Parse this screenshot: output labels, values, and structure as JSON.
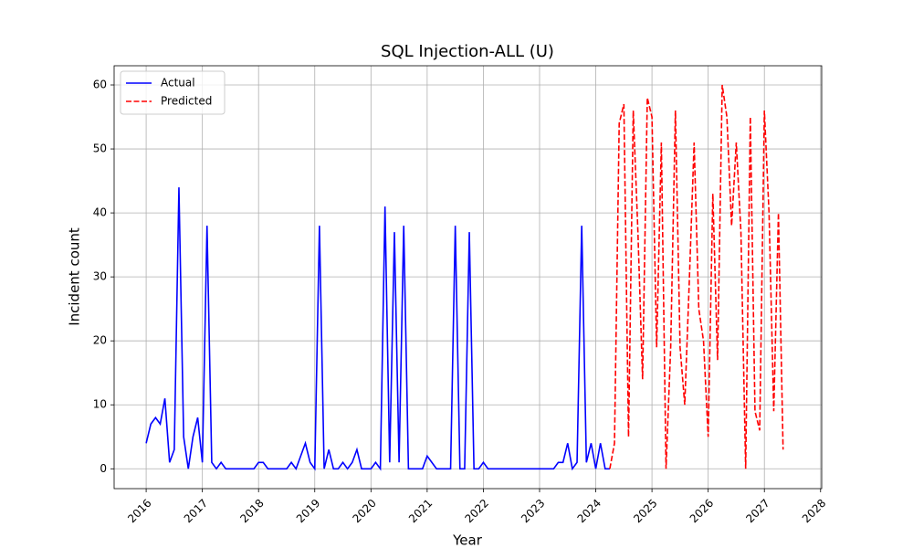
{
  "chart_data": {
    "type": "line",
    "title": "SQL Injection-ALL (U)",
    "x_label": "Year",
    "y_label": "Incident count",
    "series": [
      {
        "name": "Actual",
        "color": "#0000ff",
        "linestyle": "solid",
        "x": [
          2016.0,
          2016.083,
          2016.167,
          2016.25,
          2016.333,
          2016.417,
          2016.5,
          2016.583,
          2016.667,
          2016.75,
          2016.833,
          2016.917,
          2017.0,
          2017.083,
          2017.167,
          2017.25,
          2017.333,
          2017.417,
          2017.5,
          2017.583,
          2017.667,
          2017.75,
          2017.833,
          2017.917,
          2018.0,
          2018.083,
          2018.167,
          2018.25,
          2018.333,
          2018.417,
          2018.5,
          2018.583,
          2018.667,
          2018.75,
          2018.833,
          2018.917,
          2019.0,
          2019.083,
          2019.167,
          2019.25,
          2019.333,
          2019.417,
          2019.5,
          2019.583,
          2019.667,
          2019.75,
          2019.833,
          2019.917,
          2020.0,
          2020.083,
          2020.167,
          2020.25,
          2020.333,
          2020.417,
          2020.5,
          2020.583,
          2020.667,
          2020.75,
          2020.833,
          2020.917,
          2021.0,
          2021.083,
          2021.167,
          2021.25,
          2021.333,
          2021.417,
          2021.5,
          2021.583,
          2021.667,
          2021.75,
          2021.833,
          2021.917,
          2022.0,
          2022.083,
          2022.167,
          2022.25,
          2022.333,
          2022.417,
          2022.5,
          2022.583,
          2022.667,
          2022.75,
          2022.833,
          2022.917,
          2023.0,
          2023.083,
          2023.167,
          2023.25,
          2023.333,
          2023.417,
          2023.5,
          2023.583,
          2023.667,
          2023.75,
          2023.833,
          2023.917,
          2024.0,
          2024.083,
          2024.167,
          2024.25
        ],
        "values": [
          4,
          7,
          8,
          7,
          11,
          1,
          3,
          44,
          5,
          0,
          5,
          8,
          1,
          38,
          1,
          0,
          1,
          0,
          0,
          0,
          0,
          0,
          0,
          0,
          1,
          1,
          0,
          0,
          0,
          0,
          0,
          1,
          0,
          2,
          4,
          1,
          0,
          38,
          0,
          3,
          0,
          0,
          1,
          0,
          1,
          3,
          0,
          0,
          0,
          1,
          0,
          41,
          1,
          37,
          1,
          38,
          0,
          0,
          0,
          0,
          2,
          1,
          0,
          0,
          0,
          0,
          38,
          0,
          0,
          37,
          0,
          0,
          1,
          0,
          0,
          0,
          0,
          0,
          0,
          0,
          0,
          0,
          0,
          0,
          0,
          0,
          0,
          0,
          1,
          1,
          4,
          0,
          1,
          38,
          1,
          4,
          0,
          4,
          0,
          0
        ]
      },
      {
        "name": "Predicted",
        "color": "#ff0000",
        "linestyle": "dashed",
        "x": [
          2024.25,
          2024.333,
          2024.417,
          2024.5,
          2024.583,
          2024.667,
          2024.75,
          2024.833,
          2024.917,
          2025.0,
          2025.083,
          2025.167,
          2025.25,
          2025.333,
          2025.417,
          2025.5,
          2025.583,
          2025.667,
          2025.75,
          2025.833,
          2025.917,
          2026.0,
          2026.083,
          2026.167,
          2026.25,
          2026.333,
          2026.417,
          2026.5,
          2026.583,
          2026.667,
          2026.75,
          2026.833,
          2026.917,
          2027.0,
          2027.083,
          2027.167,
          2027.25,
          2027.333
        ],
        "values": [
          0,
          4,
          54,
          57,
          5,
          56,
          37,
          14,
          58,
          55,
          19,
          51,
          0,
          19,
          56,
          19,
          10,
          30,
          51,
          25,
          20,
          5,
          43,
          17,
          60,
          55,
          38,
          51,
          37,
          0,
          55,
          9,
          6,
          56,
          40,
          9,
          40,
          3
        ]
      }
    ],
    "xlim": [
      2015.43,
      2028.02
    ],
    "xticks": [
      2016,
      2017,
      2018,
      2019,
      2020,
      2021,
      2022,
      2023,
      2024,
      2025,
      2026,
      2027,
      2028
    ],
    "ylim": [
      -3.1,
      63
    ],
    "yticks": [
      0,
      10,
      20,
      30,
      40,
      50,
      60
    ],
    "grid": true,
    "legend": "upper-left"
  }
}
